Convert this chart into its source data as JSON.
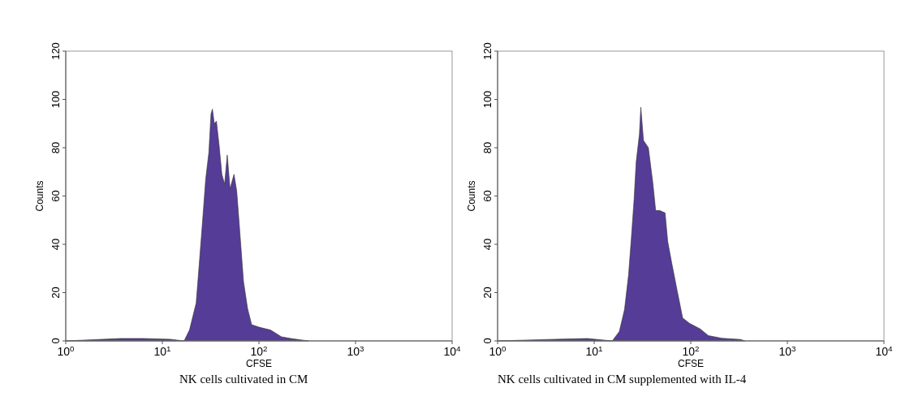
{
  "chart_data": [
    {
      "type": "area",
      "title": "NK cells cultivated in CM",
      "xlabel": "CFSE",
      "ylabel": "Counts",
      "log": "x",
      "xlim": [
        1,
        10000
      ],
      "ylim": [
        0,
        120
      ],
      "xticks": [
        {
          "value": 1,
          "label": "10$^{0}$"
        },
        {
          "value": 10,
          "label": "10$^{1}$"
        },
        {
          "value": 100,
          "label": "10$^{2}$"
        },
        {
          "value": 1000,
          "label": "10$^{3}$"
        },
        {
          "value": 10000,
          "label": "10$^{4}$"
        }
      ],
      "yticks": [
        0,
        20,
        40,
        60,
        80,
        100,
        120
      ],
      "series": [
        {
          "color": "#553c96",
          "x": [
            1,
            3.7,
            6.3,
            12,
            16.8,
            19.1,
            22.4,
            23.9,
            26.3,
            28.1,
            30.3,
            31.9,
            33,
            34.5,
            36.3,
            38.7,
            41.3,
            44.1,
            47,
            50.2,
            55.2,
            58.9,
            62.9,
            69.2,
            76.3,
            84,
            102,
            132,
            171,
            221,
            326
          ],
          "values": [
            0,
            1,
            1,
            0.7,
            0,
            4.5,
            15.7,
            30,
            51.5,
            67,
            78,
            94,
            96,
            90,
            91,
            81,
            69,
            65,
            77,
            63,
            69,
            62,
            47,
            24.6,
            13.4,
            6.7,
            5.6,
            4.5,
            1.7,
            0.9,
            0
          ]
        }
      ]
    },
    {
      "type": "area",
      "title": "NK cells cultivated in CM supplemented with IL-4",
      "xlabel": "CFSE",
      "ylabel": "Counts",
      "log": "x",
      "xlim": [
        1,
        10000
      ],
      "ylim": [
        0,
        120
      ],
      "xticks": [
        {
          "value": 1,
          "label": "10$^{0}$"
        },
        {
          "value": 10,
          "label": "10$^{1}$"
        },
        {
          "value": 100,
          "label": "10$^{2}$"
        },
        {
          "value": 1000,
          "label": "10$^{3}$"
        },
        {
          "value": 10000,
          "label": "10$^{4}$"
        }
      ],
      "yticks": [
        0,
        20,
        40,
        60,
        80,
        100,
        120
      ],
      "series": [
        {
          "color": "#553c96",
          "x": [
            1,
            4,
            8.5,
            15.4,
            18.2,
            20.6,
            22.7,
            24.3,
            25.9,
            27.2,
            29.4,
            30.4,
            32.4,
            36.4,
            40.6,
            43.3,
            47.6,
            54.2,
            57.8,
            63.7,
            72.4,
            82.4,
            96.8,
            125,
            152,
            210,
            329,
            363
          ],
          "values": [
            0,
            0.7,
            1,
            0,
            3.9,
            12.9,
            27.4,
            43,
            58.7,
            74,
            85.6,
            96.8,
            83,
            80,
            65,
            54,
            54,
            53,
            41,
            32,
            20.7,
            9.5,
            7.3,
            5,
            2.2,
            1.1,
            0.6,
            0
          ]
        }
      ]
    }
  ]
}
